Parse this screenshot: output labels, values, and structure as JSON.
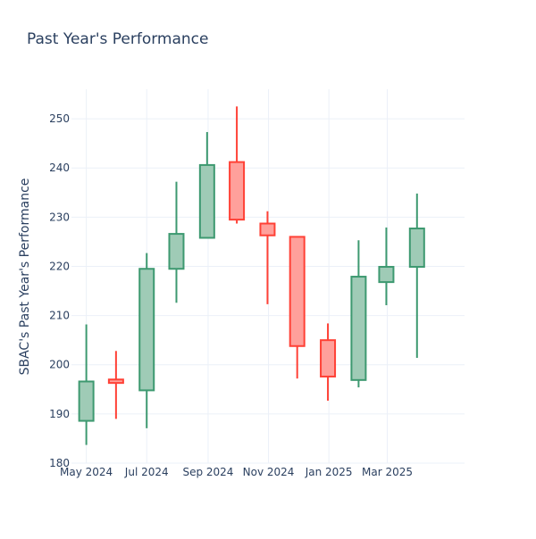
{
  "chart_data": {
    "type": "candlestick",
    "title": "Past Year's Performance",
    "xlabel": "",
    "ylabel": "SBAC's Past Year's Performance",
    "ylim": [
      180,
      256
    ],
    "yticks": [
      180,
      190,
      200,
      210,
      220,
      230,
      240,
      250
    ],
    "xticks": [
      {
        "label": "May 2024",
        "date": "2024-05-01"
      },
      {
        "label": "Jul 2024",
        "date": "2024-07-01"
      },
      {
        "label": "Sep 2024",
        "date": "2024-09-01"
      },
      {
        "label": "Nov 2024",
        "date": "2024-11-01"
      },
      {
        "label": "Jan 2025",
        "date": "2025-01-01"
      },
      {
        "label": "Mar 2025",
        "date": "2025-03-01"
      }
    ],
    "xlim": [
      "2024-04-16",
      "2025-05-18"
    ],
    "grid": true,
    "colors": {
      "increasing": "#3d9970",
      "decreasing": "#ff4136",
      "increasing_fill": "#9fcbb6",
      "decreasing_fill": "#ffa09b"
    },
    "candles": [
      {
        "date": "2024-05-01",
        "open": 188.6,
        "high": 208.2,
        "low": 183.7,
        "close": 196.6
      },
      {
        "date": "2024-05-31",
        "open": 197.0,
        "high": 202.8,
        "low": 189.0,
        "close": 196.3
      },
      {
        "date": "2024-07-01",
        "open": 194.8,
        "high": 222.7,
        "low": 187.1,
        "close": 219.5
      },
      {
        "date": "2024-07-31",
        "open": 219.5,
        "high": 237.2,
        "low": 212.6,
        "close": 226.6
      },
      {
        "date": "2024-08-31",
        "open": 225.8,
        "high": 247.3,
        "low": 225.8,
        "close": 240.6
      },
      {
        "date": "2024-09-30",
        "open": 241.2,
        "high": 252.5,
        "low": 228.7,
        "close": 229.5
      },
      {
        "date": "2024-10-31",
        "open": 228.7,
        "high": 231.2,
        "low": 212.3,
        "close": 226.3
      },
      {
        "date": "2024-11-30",
        "open": 226.0,
        "high": 226.0,
        "low": 197.2,
        "close": 203.8
      },
      {
        "date": "2024-12-31",
        "open": 205.0,
        "high": 208.4,
        "low": 192.7,
        "close": 197.6
      },
      {
        "date": "2025-01-31",
        "open": 196.9,
        "high": 225.3,
        "low": 195.4,
        "close": 217.9
      },
      {
        "date": "2025-02-28",
        "open": 216.8,
        "high": 227.9,
        "low": 212.1,
        "close": 219.9
      },
      {
        "date": "2025-03-31",
        "open": 219.9,
        "high": 234.8,
        "low": 201.4,
        "close": 227.7
      }
    ]
  }
}
